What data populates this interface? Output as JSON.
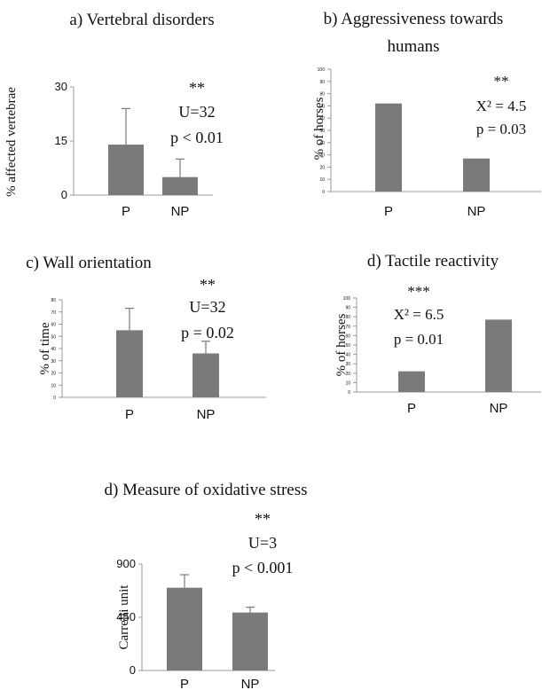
{
  "colors": {
    "bar": "#7a7a7a",
    "axis": "#9a9a9a",
    "text": "#111111"
  },
  "chart_data": [
    {
      "id": "a",
      "type": "bar",
      "title_line1": "a) Vertebral disorders",
      "title_line2": "",
      "ylabel": "% affected vertebrae",
      "categories": [
        "P",
        "NP"
      ],
      "values": [
        14,
        5
      ],
      "errors": [
        10,
        5
      ],
      "ylim": [
        0,
        30
      ],
      "yticks": [
        "0",
        "15",
        "30"
      ],
      "stats": [
        "**",
        "U=32",
        "p < 0.01"
      ]
    },
    {
      "id": "b",
      "type": "bar",
      "title_line1": "b) Aggressiveness towards",
      "title_line2": "humans",
      "ylabel": "% of horses",
      "categories": [
        "P",
        "NP"
      ],
      "values": [
        72,
        27
      ],
      "errors": [
        0,
        0
      ],
      "ylim": [
        0,
        100
      ],
      "yticks": [
        "0",
        "10",
        "20",
        "30",
        "40",
        "50",
        "60",
        "70",
        "80",
        "90",
        "100"
      ],
      "stats": [
        "**",
        "X² = 4.5",
        "p = 0.03"
      ]
    },
    {
      "id": "c",
      "type": "bar",
      "title_line1": "c) Wall orientation",
      "title_line2": "",
      "ylabel": "% of time",
      "categories": [
        "P",
        "NP"
      ],
      "values": [
        55,
        36
      ],
      "errors": [
        18,
        10
      ],
      "ylim": [
        0,
        80
      ],
      "yticks": [
        "0",
        "10",
        "20",
        "30",
        "40",
        "50",
        "60",
        "70",
        "80"
      ],
      "stats": [
        "**",
        "U=32",
        "p = 0.02"
      ]
    },
    {
      "id": "d",
      "type": "bar",
      "title_line1": "d) Tactile reactivity",
      "title_line2": "",
      "ylabel": "% of horses",
      "categories": [
        "P",
        "NP"
      ],
      "values": [
        22,
        77
      ],
      "errors": [
        0,
        0
      ],
      "ylim": [
        0,
        100
      ],
      "yticks": [
        "0",
        "10",
        "20",
        "30",
        "40",
        "50",
        "60",
        "70",
        "80",
        "90",
        "100"
      ],
      "stats": [
        "***",
        "X² = 6.5",
        "p = 0.01"
      ]
    },
    {
      "id": "e",
      "type": "bar",
      "title_line1": "d) Measure of oxidative stress",
      "title_line2": "",
      "ylabel": "Carrelli unit",
      "categories": [
        "P",
        "NP"
      ],
      "values": [
        700,
        490
      ],
      "errors": [
        110,
        45
      ],
      "ylim": [
        0,
        900
      ],
      "yticks": [
        "0",
        "450",
        "900"
      ],
      "stats": [
        "**",
        "U=3",
        "p < 0.001"
      ]
    }
  ]
}
